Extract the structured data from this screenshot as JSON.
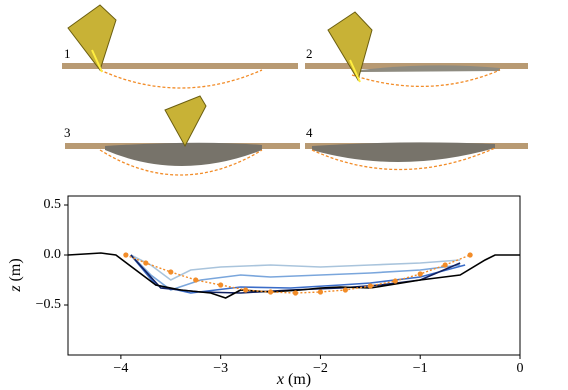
{
  "panels": [
    "1",
    "2",
    "3",
    "4"
  ],
  "chart_data": {
    "type": "line",
    "xlabel_symbol": "x",
    "xlabel_unit": "(m)",
    "ylabel_symbol": "z",
    "ylabel_unit": "(m)",
    "xlim": [
      -4.53,
      0
    ],
    "ylim": [
      -1.0,
      0.59
    ],
    "xticks": [
      {
        "value": -4,
        "label": "−4"
      },
      {
        "value": -3,
        "label": "−3"
      },
      {
        "value": -2,
        "label": "−2"
      },
      {
        "value": -1,
        "label": "−1"
      },
      0
    ],
    "yticks": [
      {
        "value": -0.5,
        "label": "−0.5"
      },
      {
        "value": 0,
        "label": "0.0"
      },
      0.5
    ],
    "series": [
      {
        "color": "#a9c4dc",
        "linestyle": "solid",
        "marker": false,
        "x": [
          -3.9,
          -3.7,
          -3.5,
          -3.3,
          -3.0,
          -2.5,
          -2.0,
          -1.5,
          -1.0,
          -0.6
        ],
        "values": [
          0,
          -0.1,
          -0.25,
          -0.15,
          -0.12,
          -0.1,
          -0.12,
          -0.1,
          -0.08,
          -0.05
        ]
      },
      {
        "color": "#7aa6dc",
        "linestyle": "solid",
        "marker": false,
        "x": [
          -3.9,
          -3.7,
          -3.5,
          -3.2,
          -2.8,
          -2.5,
          -2.0,
          -1.5,
          -1.0,
          -0.6
        ],
        "values": [
          0,
          -0.2,
          -0.35,
          -0.25,
          -0.2,
          -0.22,
          -0.2,
          -0.18,
          -0.15,
          -0.1
        ]
      },
      {
        "color": "#3a6cc8",
        "linestyle": "solid",
        "marker": false,
        "x": [
          -3.9,
          -3.65,
          -3.3,
          -2.8,
          -2.3,
          -1.8,
          -1.5,
          -1.0,
          -0.55
        ],
        "values": [
          0,
          -0.3,
          -0.38,
          -0.32,
          -0.33,
          -0.3,
          -0.28,
          -0.22,
          -0.1
        ]
      },
      {
        "color": "#102060",
        "linestyle": "solid",
        "marker": false,
        "x": [
          -3.9,
          -3.6,
          -3.2,
          -2.8,
          -2.3,
          -1.8,
          -1.4,
          -1.0,
          -0.6
        ],
        "values": [
          0,
          -0.33,
          -0.37,
          -0.38,
          -0.35,
          -0.33,
          -0.3,
          -0.25,
          -0.08
        ]
      },
      {
        "color": "#000000",
        "linestyle": "solid",
        "marker": false,
        "x": [
          -4.53,
          -4.2,
          -4.05,
          -3.65,
          -3.4,
          -3.1,
          -2.95,
          -2.8,
          -2.5,
          -2.2,
          -2.0,
          -1.8,
          -1.5,
          -1.0,
          -0.6,
          -0.35,
          -0.25,
          0
        ],
        "values": [
          0,
          0.02,
          0,
          -0.3,
          -0.35,
          -0.38,
          -0.43,
          -0.35,
          -0.37,
          -0.35,
          -0.33,
          -0.32,
          -0.33,
          -0.25,
          -0.2,
          -0.05,
          0,
          0
        ]
      },
      {
        "color": "#f28c28",
        "linestyle": "dotted",
        "marker": true,
        "x": [
          -3.95,
          -3.75,
          -3.5,
          -3.25,
          -3.0,
          -2.75,
          -2.5,
          -2.25,
          -2.0,
          -1.75,
          -1.5,
          -1.25,
          -1.0,
          -0.75,
          -0.5
        ],
        "values": [
          0,
          -0.08,
          -0.17,
          -0.25,
          -0.3,
          -0.35,
          -0.37,
          -0.38,
          -0.37,
          -0.35,
          -0.31,
          -0.26,
          -0.19,
          -0.1,
          0
        ]
      }
    ]
  }
}
